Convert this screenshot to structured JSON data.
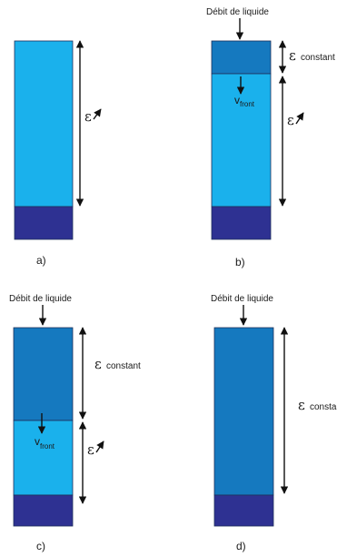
{
  "colors": {
    "light_bed": "#1ab1ec",
    "saturated_bed": "#1579bf",
    "base": "#2e3192",
    "line": "#111111"
  },
  "labels": {
    "liquid_flow": "Débit de liquide",
    "epsilon": "ε",
    "constant": "constant",
    "v": "v",
    "front": "front",
    "panel_a": "a)",
    "panel_b": "b)",
    "panel_c": "c)",
    "panel_d": "d)"
  },
  "icons": {
    "increase": "up-right-arrow-icon",
    "flow_in": "down-arrow-icon"
  }
}
